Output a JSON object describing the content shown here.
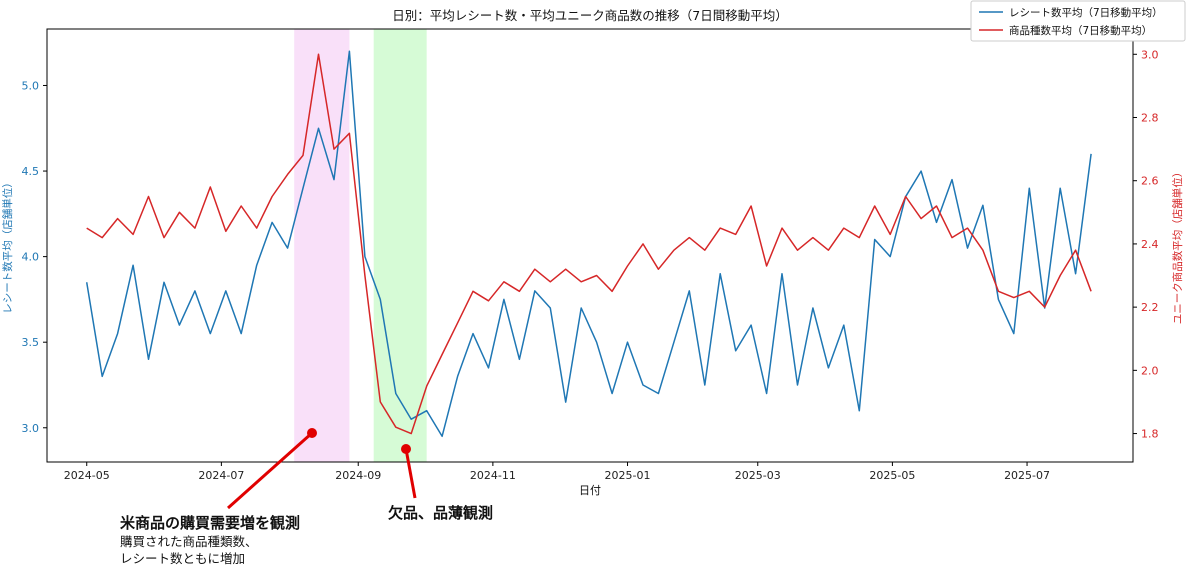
{
  "chart_data": {
    "type": "line",
    "title": "日別：平均レシート数・平均ユニーク商品数の推移（7日間移動平均）",
    "xlabel": "日付",
    "ylabel_left": "レシート数平均（店舗単位）",
    "ylabel_right": "ユニーク商品数平均（店舗単位）",
    "x_tick_labels": [
      "2024-05",
      "2024-07",
      "2024-09",
      "2024-11",
      "2025-01",
      "2025-03",
      "2025-05",
      "2025-07"
    ],
    "x_range": [
      "2024-04-13",
      "2025-08-18"
    ],
    "ylim_left": [
      2.8,
      5.33
    ],
    "ylim_right": [
      1.71,
      3.08
    ],
    "yticks_left": [
      "3.0",
      "3.5",
      "4.0",
      "4.5",
      "5.0"
    ],
    "yticks_right": [
      "1.8",
      "2.0",
      "2.2",
      "2.4",
      "2.6",
      "2.8",
      "3.0"
    ],
    "grid": false,
    "legend_position": "top-right",
    "colors": {
      "receipts": "#1f77b4",
      "products": "#d62728",
      "pink_band": "#f9e0f9",
      "green_band": "#d6fbd6",
      "marker": "#e00000"
    },
    "highlight_regions": [
      {
        "start": "2024-08-03",
        "end": "2024-08-28",
        "color": "pink"
      },
      {
        "start": "2024-09-08",
        "end": "2024-10-02",
        "color": "green"
      }
    ],
    "series": [
      {
        "name": "レシート数平均（7日移動平均）",
        "axis": "left",
        "x": [
          "2024-05-01",
          "2024-05-08",
          "2024-05-15",
          "2024-05-22",
          "2024-05-29",
          "2024-06-05",
          "2024-06-12",
          "2024-06-19",
          "2024-06-26",
          "2024-07-03",
          "2024-07-10",
          "2024-07-17",
          "2024-07-24",
          "2024-07-31",
          "2024-08-07",
          "2024-08-14",
          "2024-08-21",
          "2024-08-28",
          "2024-09-04",
          "2024-09-11",
          "2024-09-18",
          "2024-09-25",
          "2024-10-02",
          "2024-10-09",
          "2024-10-16",
          "2024-10-23",
          "2024-10-30",
          "2024-11-06",
          "2024-11-13",
          "2024-11-20",
          "2024-11-27",
          "2024-12-04",
          "2024-12-11",
          "2024-12-18",
          "2024-12-25",
          "2025-01-01",
          "2025-01-08",
          "2025-01-15",
          "2025-01-22",
          "2025-01-29",
          "2025-02-05",
          "2025-02-12",
          "2025-02-19",
          "2025-02-26",
          "2025-03-05",
          "2025-03-12",
          "2025-03-19",
          "2025-03-26",
          "2025-04-02",
          "2025-04-09",
          "2025-04-16",
          "2025-04-23",
          "2025-04-30",
          "2025-05-07",
          "2025-05-14",
          "2025-05-21",
          "2025-05-28",
          "2025-06-04",
          "2025-06-11",
          "2025-06-18",
          "2025-06-25",
          "2025-07-02",
          "2025-07-09",
          "2025-07-16",
          "2025-07-23",
          "2025-07-30"
        ],
        "values": [
          3.85,
          3.3,
          3.55,
          3.95,
          3.4,
          3.85,
          3.6,
          3.8,
          3.55,
          3.8,
          3.55,
          3.95,
          4.2,
          4.05,
          4.4,
          4.75,
          4.45,
          5.2,
          4.0,
          3.75,
          3.2,
          3.05,
          3.1,
          2.95,
          3.3,
          3.55,
          3.35,
          3.75,
          3.4,
          3.8,
          3.7,
          3.15,
          3.7,
          3.5,
          3.2,
          3.5,
          3.25,
          3.2,
          3.5,
          3.8,
          3.25,
          3.9,
          3.45,
          3.6,
          3.2,
          3.9,
          3.25,
          3.7,
          3.35,
          3.6,
          3.1,
          4.1,
          4.0,
          4.35,
          4.5,
          4.2,
          4.45,
          4.05,
          4.3,
          3.75,
          3.55,
          4.4,
          3.7,
          4.4,
          3.9,
          4.6
        ]
      },
      {
        "name": "商品種数平均（7日移動平均）",
        "axis": "right",
        "x": [
          "2024-05-01",
          "2024-05-08",
          "2024-05-15",
          "2024-05-22",
          "2024-05-29",
          "2024-06-05",
          "2024-06-12",
          "2024-06-19",
          "2024-06-26",
          "2024-07-03",
          "2024-07-10",
          "2024-07-17",
          "2024-07-24",
          "2024-07-31",
          "2024-08-07",
          "2024-08-14",
          "2024-08-21",
          "2024-08-28",
          "2024-09-04",
          "2024-09-11",
          "2024-09-18",
          "2024-09-25",
          "2024-10-02",
          "2024-10-09",
          "2024-10-16",
          "2024-10-23",
          "2024-10-30",
          "2024-11-06",
          "2024-11-13",
          "2024-11-20",
          "2024-11-27",
          "2024-12-04",
          "2024-12-11",
          "2024-12-18",
          "2024-12-25",
          "2025-01-01",
          "2025-01-08",
          "2025-01-15",
          "2025-01-22",
          "2025-01-29",
          "2025-02-05",
          "2025-02-12",
          "2025-02-19",
          "2025-02-26",
          "2025-03-05",
          "2025-03-12",
          "2025-03-19",
          "2025-03-26",
          "2025-04-02",
          "2025-04-09",
          "2025-04-16",
          "2025-04-23",
          "2025-04-30",
          "2025-05-07",
          "2025-05-14",
          "2025-05-21",
          "2025-05-28",
          "2025-06-04",
          "2025-06-11",
          "2025-06-18",
          "2025-06-25",
          "2025-07-02",
          "2025-07-09",
          "2025-07-16",
          "2025-07-23",
          "2025-07-30"
        ],
        "values": [
          2.45,
          2.42,
          2.48,
          2.43,
          2.55,
          2.42,
          2.5,
          2.45,
          2.58,
          2.44,
          2.52,
          2.45,
          2.55,
          2.62,
          2.68,
          3.0,
          2.7,
          2.75,
          2.3,
          1.9,
          1.82,
          1.8,
          1.95,
          2.05,
          2.15,
          2.25,
          2.22,
          2.28,
          2.25,
          2.32,
          2.28,
          2.32,
          2.28,
          2.3,
          2.25,
          2.33,
          2.4,
          2.32,
          2.38,
          2.42,
          2.38,
          2.45,
          2.43,
          2.52,
          2.33,
          2.45,
          2.38,
          2.42,
          2.38,
          2.45,
          2.42,
          2.52,
          2.43,
          2.55,
          2.48,
          2.52,
          2.42,
          2.45,
          2.38,
          2.25,
          2.23,
          2.25,
          2.2,
          2.3,
          2.38,
          2.25
        ]
      }
    ]
  },
  "annotations": {
    "left_title": "米商品の購買需要増を観測",
    "left_sub_1": "購買された商品種類数、",
    "left_sub_2": "レシート数ともに増加",
    "right_title": "欠品、品薄観測"
  }
}
